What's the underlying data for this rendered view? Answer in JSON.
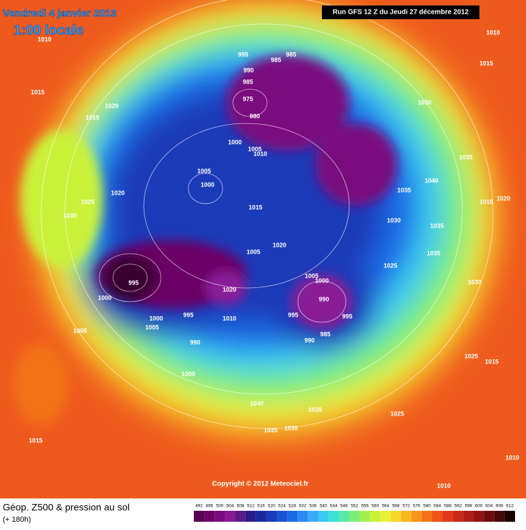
{
  "header": {
    "date": "Vendredi 4 janvier 2013",
    "time": "1:00 locale",
    "run": "Run GFS 12 Z du Jeudi 27 décembre 2012"
  },
  "footer": {
    "copyright": "Copyright © 2012 Meteociel.fr",
    "field": "Géop. Z500 & pression au sol",
    "lead": "(+ 180h)"
  },
  "legend": {
    "values": [
      492,
      496,
      500,
      504,
      508,
      512,
      516,
      520,
      524,
      528,
      532,
      536,
      540,
      544,
      548,
      552,
      556,
      560,
      564,
      568,
      572,
      576,
      580,
      584,
      588,
      592,
      596,
      600,
      604,
      608,
      612
    ],
    "colors": [
      "#5a0050",
      "#6a0066",
      "#7a0a7e",
      "#8a1a96",
      "#5a1a8a",
      "#2a1a88",
      "#1a2a9e",
      "#1a3ab8",
      "#1a52d0",
      "#1a6ae6",
      "#2a8af0",
      "#3aaaf6",
      "#3acaf0",
      "#3ae0d8",
      "#5ae8a8",
      "#7aee78",
      "#a2f050",
      "#caf23a",
      "#eaf03a",
      "#f6d82a",
      "#f8b822",
      "#f6961a",
      "#f27218",
      "#ee5218",
      "#e23a18",
      "#c82a18",
      "#ae1e16",
      "#901414",
      "#6c0e0e",
      "#440808",
      "#1a0202"
    ]
  },
  "isobar_labels": [
    "1010",
    "995",
    "985",
    "985",
    "990",
    "985",
    "975",
    "980",
    "1030",
    "1015",
    "1020",
    "1015",
    "1010",
    "1015",
    "1000",
    "1005",
    "1010",
    "1035",
    "1005",
    "1000",
    "1020",
    "1035",
    "1040",
    "1025",
    "1030",
    "1015",
    "1015",
    "1020",
    "1030",
    "1035",
    "1020",
    "1005",
    "1035",
    "1025",
    "995",
    "1000",
    "1020",
    "1005",
    "1000",
    "1030",
    "990",
    "1000",
    "995",
    "1005",
    "1010",
    "995",
    "995",
    "1005",
    "990",
    "985",
    "990",
    "1000",
    "1040",
    "1035",
    "1025",
    "1015",
    "1025",
    "1035",
    "1030",
    "1015",
    "1010",
    "1010"
  ]
}
